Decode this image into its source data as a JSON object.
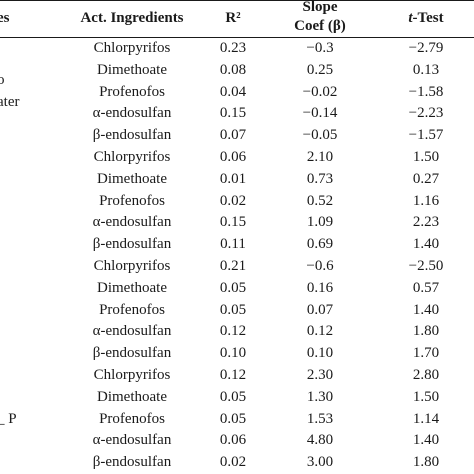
{
  "header": {
    "col0": "es",
    "col1": "Act. Ingredients",
    "col2": "R²",
    "col3_line1": "Slope",
    "col3_line2": "Coef (β)",
    "col4_prefix": "t",
    "col4_suffix": "-Test"
  },
  "group_labels": [
    {
      "text": "o",
      "row": 1
    },
    {
      "text": "ater",
      "row": 2
    },
    {
      "text": "_ P",
      "row": 17
    }
  ],
  "rows": [
    [
      "Chlorpyrifos",
      "0.23",
      "−0.3",
      "−2.79"
    ],
    [
      "Dimethoate",
      "0.08",
      "0.25",
      "0.13"
    ],
    [
      "Profenofos",
      "0.04",
      "−0.02",
      "−1.58"
    ],
    [
      "α-endosulfan",
      "0.15",
      "−0.14",
      "−2.23"
    ],
    [
      "β-endosulfan",
      "0.07",
      "−0.05",
      "−1.57"
    ],
    [
      "Chlorpyrifos",
      "0.06",
      "2.10",
      "1.50"
    ],
    [
      "Dimethoate",
      "0.01",
      "0.73",
      "0.27"
    ],
    [
      "Profenofos",
      "0.02",
      "0.52",
      "1.16"
    ],
    [
      "α-endosulfan",
      "0.15",
      "1.09",
      "2.23"
    ],
    [
      "β-endosulfan",
      "0.11",
      "0.69",
      "1.40"
    ],
    [
      "Chlorpyrifos",
      "0.21",
      "−0.6",
      "−2.50"
    ],
    [
      "Dimethoate",
      "0.05",
      "0.16",
      "0.57"
    ],
    [
      "Profenofos",
      "0.05",
      "0.07",
      "1.40"
    ],
    [
      "α-endosulfan",
      "0.12",
      "0.12",
      "1.80"
    ],
    [
      "β-endosulfan",
      "0.10",
      "0.10",
      "1.70"
    ],
    [
      "Chlorpyrifos",
      "0.12",
      "2.30",
      "2.80"
    ],
    [
      "Dimethoate",
      "0.05",
      "1.30",
      "1.50"
    ],
    [
      "Profenofos",
      "0.05",
      "1.53",
      "1.14"
    ],
    [
      "α-endosulfan",
      "0.06",
      "4.80",
      "1.40"
    ],
    [
      "β-endosulfan",
      "0.02",
      "3.00",
      "1.80"
    ]
  ]
}
